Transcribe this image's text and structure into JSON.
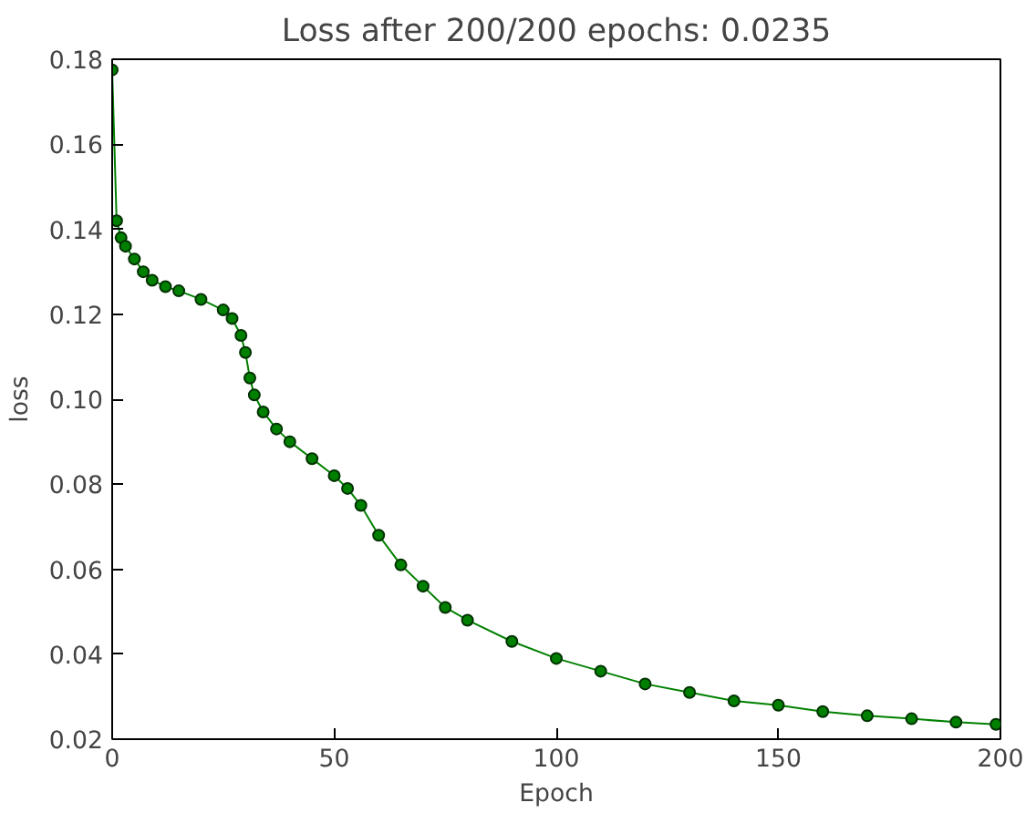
{
  "chart_data": {
    "type": "line",
    "title": "Loss after 200/200 epochs: 0.0235",
    "xlabel": "Epoch",
    "ylabel": "loss",
    "x": [
      0,
      1,
      2,
      3,
      5,
      7,
      9,
      12,
      15,
      20,
      25,
      27,
      29,
      30,
      31,
      32,
      34,
      37,
      40,
      45,
      50,
      53,
      56,
      60,
      65,
      70,
      75,
      80,
      90,
      100,
      110,
      120,
      130,
      140,
      150,
      160,
      170,
      180,
      190,
      199
    ],
    "series": [
      {
        "color": "#008000",
        "values": [
          0.1775,
          0.142,
          0.138,
          0.136,
          0.133,
          0.13,
          0.128,
          0.1265,
          0.1255,
          0.1235,
          0.121,
          0.119,
          0.115,
          0.111,
          0.105,
          0.101,
          0.097,
          0.093,
          0.09,
          0.086,
          0.082,
          0.079,
          0.075,
          0.068,
          0.061,
          0.056,
          0.051,
          0.048,
          0.043,
          0.039,
          0.036,
          0.033,
          0.031,
          0.029,
          0.028,
          0.0265,
          0.0255,
          0.0248,
          0.024,
          0.0235
        ]
      }
    ],
    "xlim": [
      0,
      200
    ],
    "xticks": [
      0,
      50,
      100,
      150,
      200
    ],
    "ylim": [
      0.02,
      0.18
    ],
    "yticks": [
      0.02,
      0.04,
      0.06,
      0.08,
      {
        "value": 0.1,
        "label": "0.10"
      },
      0.12,
      0.14,
      0.16,
      0.18
    ],
    "marker": "circle",
    "grid": false,
    "line_style": "solid"
  }
}
